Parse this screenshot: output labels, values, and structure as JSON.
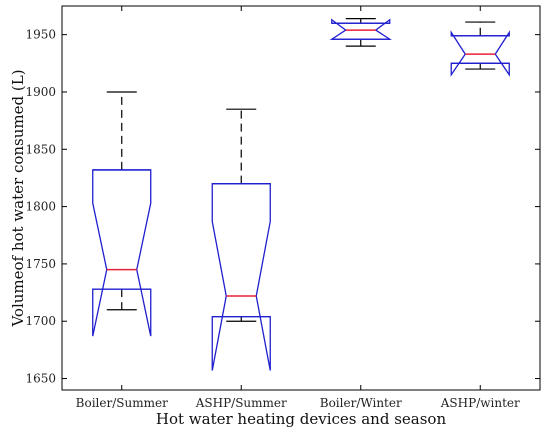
{
  "chart_data": {
    "type": "boxplot",
    "title": "",
    "xlabel": "Hot water heating devices and season",
    "ylabel": "Volumeof hot water consumed (L)",
    "ylim": [
      1640,
      1975
    ],
    "yticks": [
      1650,
      1700,
      1750,
      1800,
      1850,
      1900,
      1950
    ],
    "notched": true,
    "grid": false,
    "box_color": "#1f1fd0",
    "median_color": "#e8203a",
    "whisker_color": "#000000",
    "categories": [
      "Boiler/Summer",
      "ASHP/Summer",
      "Boiler/Winter",
      "ASHP/winter"
    ],
    "boxes": [
      {
        "label": "Boiler/Summer",
        "whisker_low": 1710,
        "q1": 1728,
        "median": 1745,
        "q3": 1832,
        "whisker_high": 1900,
        "notch_low": 1687,
        "notch_high": 1803
      },
      {
        "label": "ASHP/Summer",
        "whisker_low": 1700,
        "q1": 1704,
        "median": 1722,
        "q3": 1820,
        "whisker_high": 1885,
        "notch_low": 1657,
        "notch_high": 1787
      },
      {
        "label": "Boiler/Winter",
        "whisker_low": 1940,
        "q1": 1946,
        "median": 1954,
        "q3": 1960,
        "whisker_high": 1964,
        "notch_low": 1946,
        "notch_high": 1963
      },
      {
        "label": "ASHP/winter",
        "whisker_low": 1920,
        "q1": 1925,
        "median": 1933,
        "q3": 1949,
        "whisker_high": 1961,
        "notch_low": 1915,
        "notch_high": 1952
      }
    ]
  }
}
